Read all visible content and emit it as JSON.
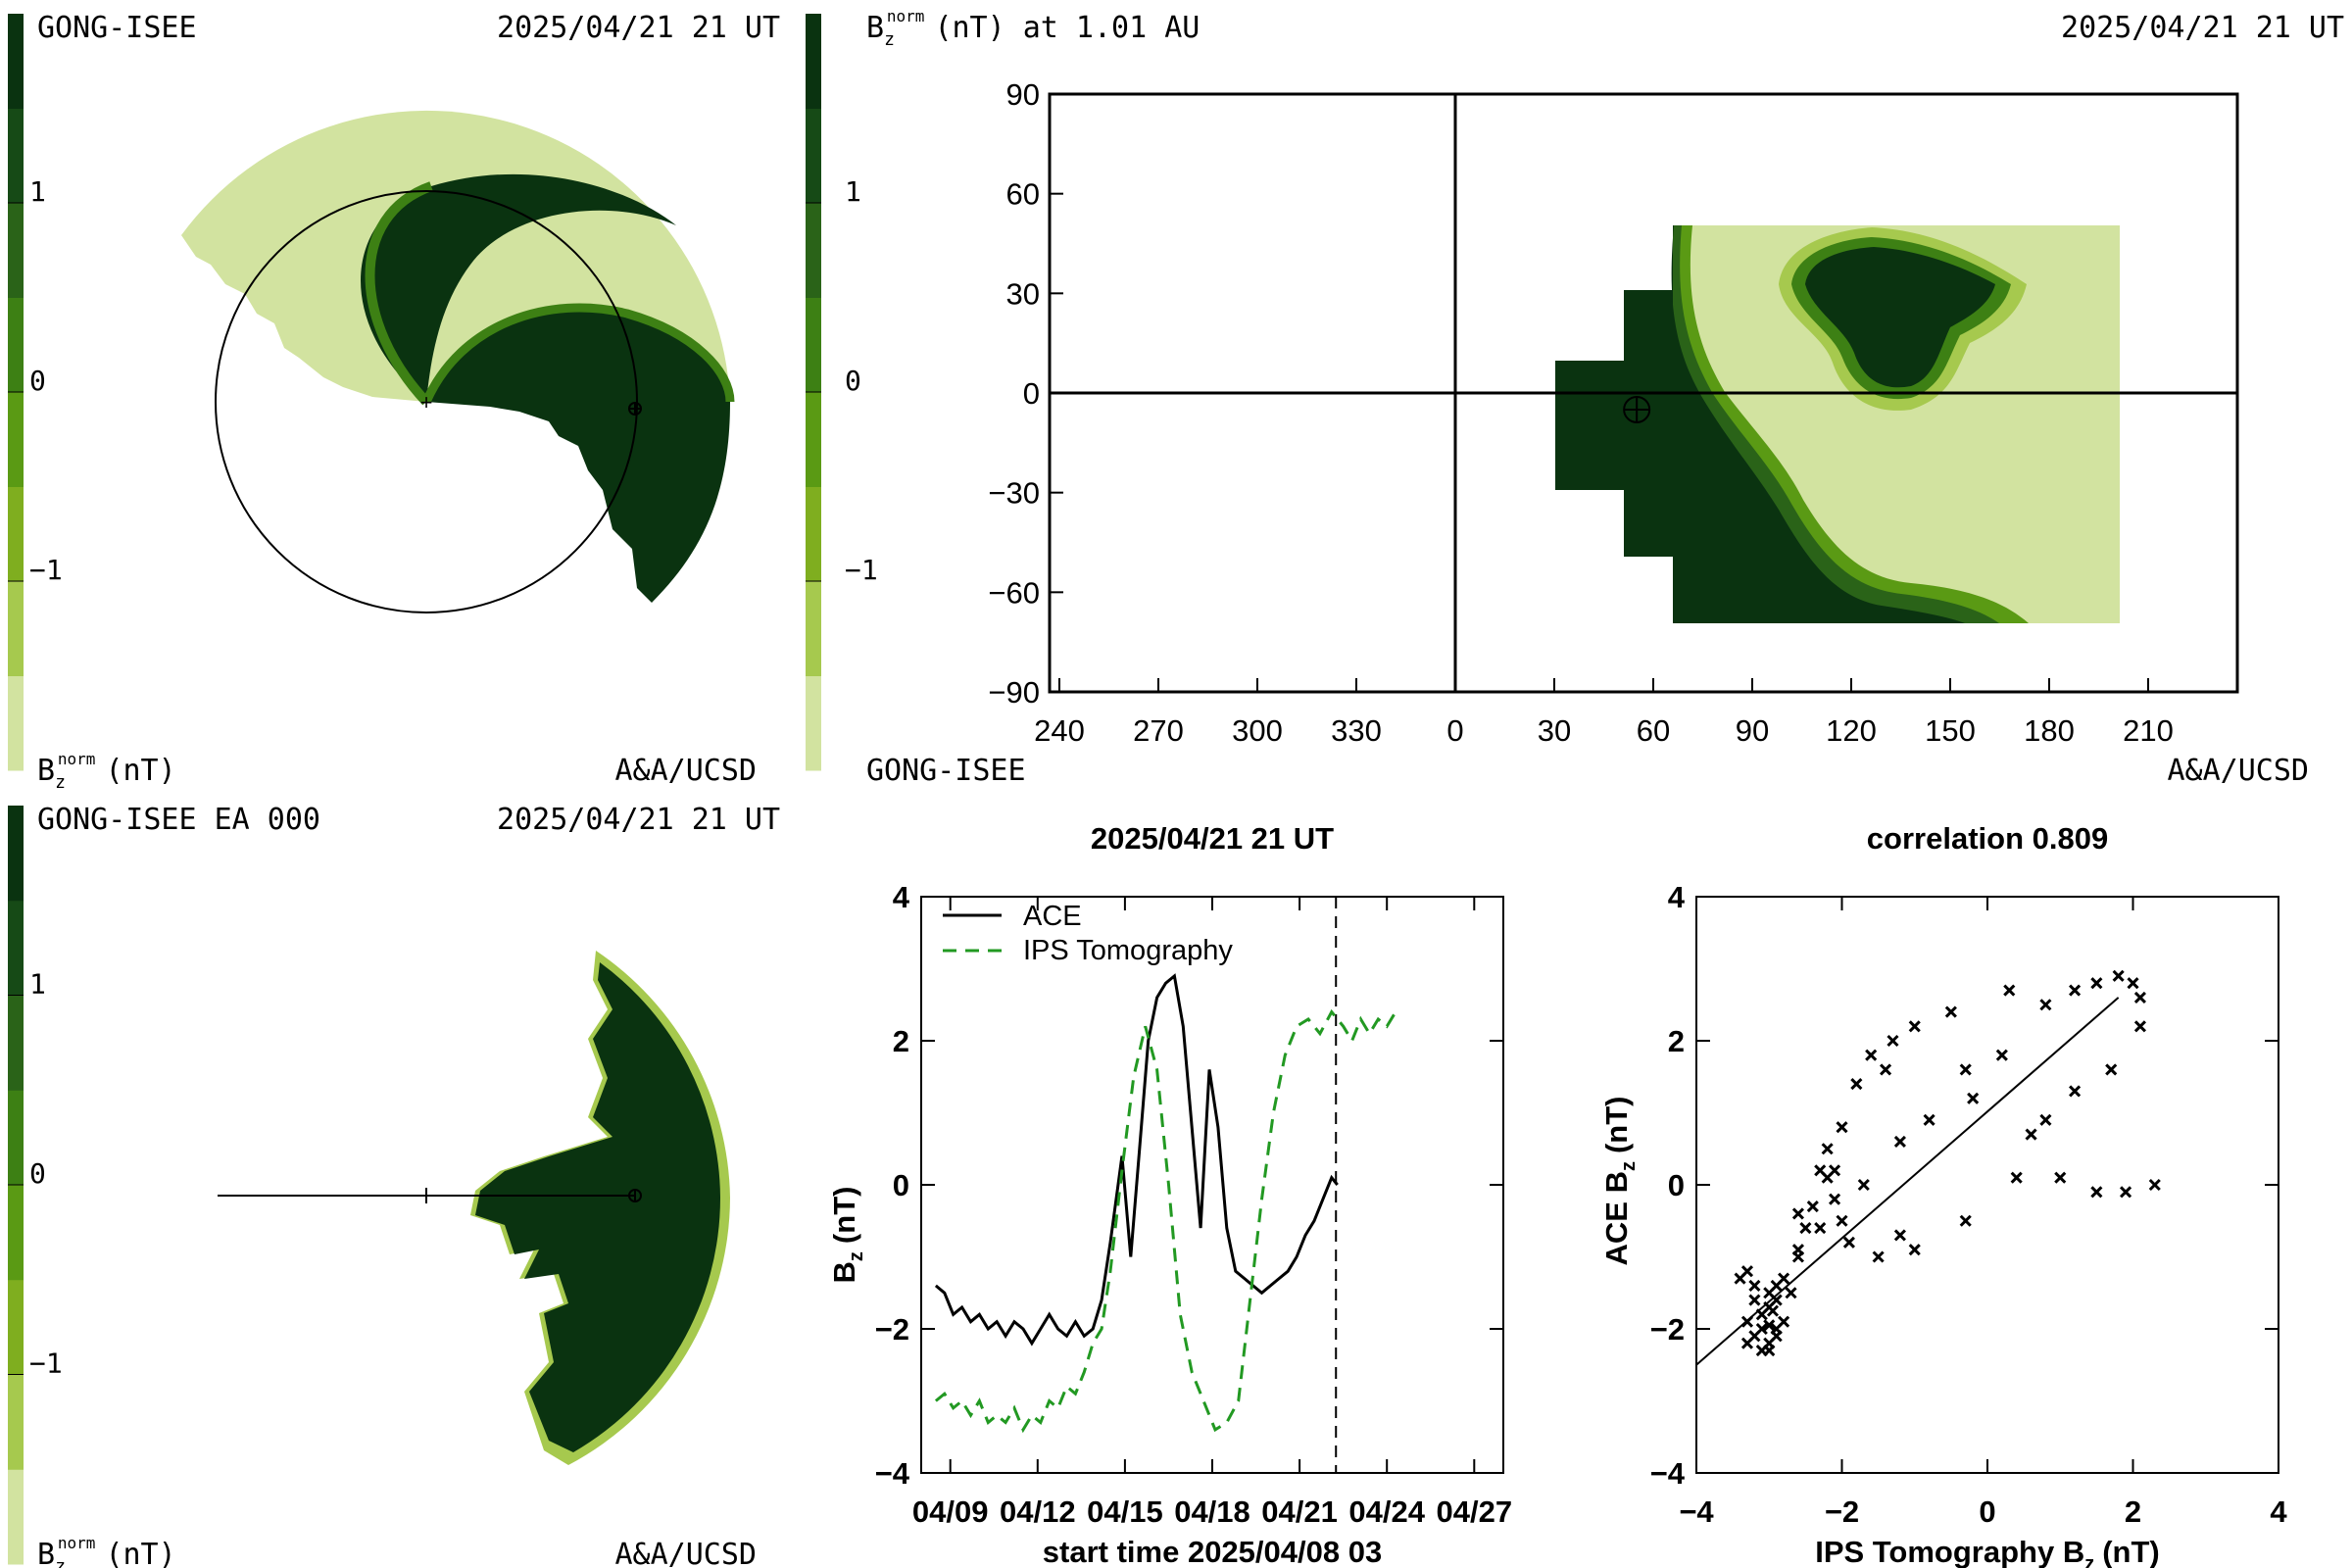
{
  "colors": {
    "scale": [
      "#d2e3a0",
      "#a6c94e",
      "#7fae1f",
      "#5a9a14",
      "#3d8014",
      "#2a6318",
      "#164a16",
      "#0a3310"
    ],
    "ace": "#000000",
    "ips": "#229922"
  },
  "panels": {
    "top_left": {
      "label_left": "GONG-ISEE",
      "label_right": "2025/04/21 21 UT",
      "foot_left": "B",
      "foot_sub": "z",
      "foot_sup": "norm",
      "foot_unit": "(nT)",
      "foot_right": "A&A/UCSD"
    },
    "top_right": {
      "title_b": "B",
      "title_sub": "z",
      "title_sup": "norm",
      "title_rest": "(nT) at 1.01 AU",
      "label_right": "2025/04/21 21 UT",
      "foot_left": "GONG-ISEE",
      "foot_right": "A&A/UCSD"
    },
    "bottom_left": {
      "label_left": "GONG-ISEE EA 000",
      "label_right": "2025/04/21 21 UT",
      "foot_left": "B",
      "foot_sub": "z",
      "foot_sup": "norm",
      "foot_unit": "(nT)",
      "foot_right": "A&A/UCSD"
    }
  },
  "colorbar_ticks": [
    "1",
    "0",
    "−1"
  ],
  "chart_data": [
    {
      "type": "heatmap",
      "name_ref": "synoptic-map",
      "x_ticks": [
        "240",
        "270",
        "300",
        "330",
        "0",
        "30",
        "60",
        "90",
        "120",
        "150",
        "180",
        "210"
      ],
      "y_ticks": [
        90,
        60,
        30,
        0,
        -30,
        -60,
        -90
      ],
      "ylim": [
        -90,
        90
      ],
      "earth_marker": {
        "lon": 55,
        "lat": -5
      }
    },
    {
      "type": "line",
      "title": "2025/04/21 21 UT",
      "xlabel": "start time 2025/04/08 03",
      "ylabel_b": "B",
      "ylabel_sub": "z",
      "ylabel_unit": "(nT)",
      "x_ticks": [
        "04/09",
        "04/12",
        "04/15",
        "04/18",
        "04/21",
        "04/24",
        "04/27"
      ],
      "ylim": [
        -4,
        4
      ],
      "y_ticks": [
        4,
        2,
        0,
        -2,
        -4
      ],
      "xlim_days": [
        -0.5,
        19.5
      ],
      "current_time_day": 13.75,
      "legend": {
        "ace": "ACE",
        "ips": "IPS Tomography",
        "position": "top-left"
      },
      "series": [
        {
          "name": "ACE",
          "x": [
            0,
            0.3,
            0.6,
            0.9,
            1.2,
            1.5,
            1.8,
            2.1,
            2.4,
            2.7,
            3.0,
            3.3,
            3.6,
            3.9,
            4.2,
            4.5,
            4.8,
            5.1,
            5.4,
            5.7,
            6.0,
            6.4,
            6.7,
            7.0,
            7.3,
            7.6,
            7.9,
            8.2,
            8.5,
            8.8,
            9.1,
            9.4,
            9.7,
            10.0,
            10.3,
            10.6,
            10.9,
            11.2,
            11.5,
            11.8,
            12.1,
            12.4,
            12.7,
            13.0,
            13.3,
            13.6,
            13.8
          ],
          "values": [
            -1.4,
            -1.5,
            -1.8,
            -1.7,
            -1.9,
            -1.8,
            -2.0,
            -1.9,
            -2.1,
            -1.9,
            -2.0,
            -2.2,
            -2.0,
            -1.8,
            -2.0,
            -2.1,
            -1.9,
            -2.1,
            -2.0,
            -1.6,
            -0.8,
            0.4,
            -1.0,
            0.5,
            2.0,
            2.6,
            2.8,
            2.9,
            2.2,
            0.8,
            -0.6,
            1.6,
            0.8,
            -0.6,
            -1.2,
            -1.3,
            -1.4,
            -1.5,
            -1.4,
            -1.3,
            -1.2,
            -1.0,
            -0.7,
            -0.5,
            -0.2,
            0.1,
            0.0
          ]
        },
        {
          "name": "IPS Tomography",
          "x": [
            0,
            0.3,
            0.6,
            0.9,
            1.2,
            1.5,
            1.8,
            2.1,
            2.4,
            2.7,
            3.0,
            3.3,
            3.6,
            3.9,
            4.2,
            4.5,
            4.8,
            5.1,
            5.4,
            5.7,
            6.0,
            6.4,
            6.8,
            7.2,
            7.6,
            8.0,
            8.4,
            8.8,
            9.2,
            9.6,
            10.0,
            10.4,
            10.8,
            11.2,
            11.6,
            12.0,
            12.4,
            12.8,
            13.2,
            13.6,
            14.0,
            14.3,
            14.6,
            14.9,
            15.2,
            15.5,
            15.8
          ],
          "values": [
            -3.0,
            -2.9,
            -3.1,
            -3.0,
            -3.2,
            -3.0,
            -3.3,
            -3.2,
            -3.3,
            -3.1,
            -3.4,
            -3.2,
            -3.3,
            -3.0,
            -3.1,
            -2.8,
            -2.9,
            -2.6,
            -2.2,
            -2.0,
            -1.2,
            0.2,
            1.5,
            2.2,
            1.6,
            0.0,
            -1.8,
            -2.6,
            -3.0,
            -3.4,
            -3.3,
            -3.0,
            -1.6,
            -0.2,
            1.0,
            1.8,
            2.2,
            2.3,
            2.1,
            2.4,
            2.2,
            2.0,
            2.3,
            2.1,
            2.3,
            2.2,
            2.4
          ]
        }
      ]
    },
    {
      "type": "scatter",
      "title": "correlation 0.809",
      "xlabel_text": "IPS Tomography B",
      "xlabel_sub": "z",
      "xlabel_unit": "(nT)",
      "ylabel_text": "ACE B",
      "ylabel_sub": "z",
      "ylabel_unit": "(nT)",
      "xlim": [
        -4,
        4
      ],
      "ylim": [
        -4,
        4
      ],
      "x_ticks": [
        -4,
        -2,
        0,
        2,
        4
      ],
      "y_ticks": [
        4,
        2,
        0,
        -2,
        -4
      ],
      "fit_line": {
        "x": [
          -4,
          1.8
        ],
        "y": [
          -2.5,
          2.6
        ]
      },
      "points": [
        [
          -3.2,
          -2.1
        ],
        [
          -3.1,
          -2.0
        ],
        [
          -3.0,
          -2.2
        ],
        [
          -3.3,
          -1.9
        ],
        [
          -3.1,
          -1.8
        ],
        [
          -2.9,
          -2.0
        ],
        [
          -3.0,
          -1.7
        ],
        [
          -3.2,
          -1.6
        ],
        [
          -2.8,
          -1.9
        ],
        [
          -3.0,
          -2.3
        ],
        [
          -3.3,
          -2.2
        ],
        [
          -3.1,
          -2.3
        ],
        [
          -2.9,
          -1.6
        ],
        [
          -3.2,
          -1.4
        ],
        [
          -3.0,
          -1.5
        ],
        [
          -3.4,
          -1.3
        ],
        [
          -3.3,
          -1.2
        ],
        [
          -2.9,
          -1.4
        ],
        [
          -2.7,
          -1.5
        ],
        [
          -2.8,
          -1.3
        ],
        [
          -2.6,
          -1.0
        ],
        [
          -2.5,
          -0.6
        ],
        [
          -2.4,
          -0.3
        ],
        [
          -2.3,
          0.2
        ],
        [
          -2.2,
          0.5
        ],
        [
          -2.0,
          0.8
        ],
        [
          -1.8,
          1.4
        ],
        [
          -1.6,
          1.8
        ],
        [
          -1.3,
          2.0
        ],
        [
          -1.0,
          2.2
        ],
        [
          -0.5,
          2.4
        ],
        [
          0.3,
          2.7
        ],
        [
          0.8,
          2.5
        ],
        [
          1.2,
          2.7
        ],
        [
          1.5,
          2.8
        ],
        [
          1.8,
          2.9
        ],
        [
          2.0,
          2.8
        ],
        [
          2.1,
          2.6
        ],
        [
          2.1,
          2.2
        ],
        [
          1.7,
          1.6
        ],
        [
          1.2,
          1.3
        ],
        [
          0.8,
          0.9
        ],
        [
          0.6,
          0.7
        ],
        [
          0.4,
          0.1
        ],
        [
          -0.3,
          -0.5
        ],
        [
          -1.0,
          -0.9
        ],
        [
          -1.5,
          -1.0
        ],
        [
          -1.9,
          -0.8
        ],
        [
          -2.0,
          -0.5
        ],
        [
          -2.2,
          0.1
        ],
        [
          -2.6,
          -0.9
        ],
        [
          -2.3,
          -0.6
        ],
        [
          -2.1,
          -0.2
        ],
        [
          -1.7,
          0.0
        ],
        [
          -1.2,
          0.6
        ],
        [
          -0.8,
          0.9
        ],
        [
          -0.2,
          1.2
        ],
        [
          -0.3,
          1.6
        ],
        [
          0.2,
          1.8
        ],
        [
          1.0,
          0.1
        ],
        [
          1.5,
          -0.1
        ],
        [
          1.9,
          -0.1
        ],
        [
          2.3,
          0.0
        ],
        [
          -1.4,
          1.6
        ],
        [
          -2.6,
          -0.4
        ],
        [
          -2.1,
          0.2
        ],
        [
          -1.2,
          -0.7
        ],
        [
          -2.9,
          -2.1
        ],
        [
          -3.0,
          -1.95
        ],
        [
          -2.95,
          -1.75
        ]
      ]
    }
  ]
}
